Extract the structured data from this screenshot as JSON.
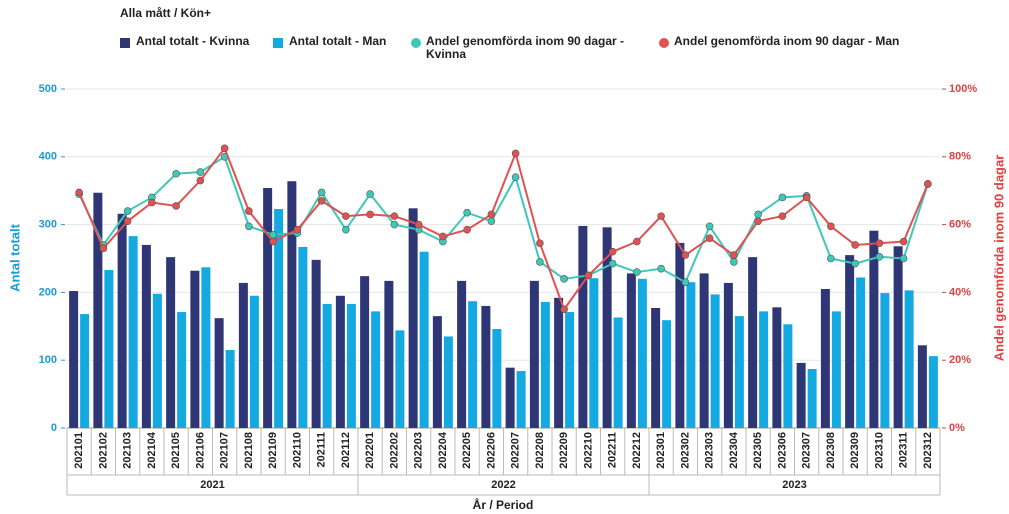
{
  "chart_data": {
    "type": "bar_line",
    "legend_title": "Alla mått / Kön+",
    "x_label": "År / Period",
    "y_label": "Antal totalt",
    "y2_label": "Andel genomförda inom 90 dagar",
    "categories": [
      "202101",
      "202102",
      "202103",
      "202104",
      "202105",
      "202106",
      "202107",
      "202108",
      "202109",
      "202110",
      "202111",
      "202112",
      "202201",
      "202202",
      "202203",
      "202204",
      "202205",
      "202206",
      "202207",
      "202208",
      "202209",
      "202210",
      "202211",
      "202212",
      "202301",
      "202302",
      "202303",
      "202304",
      "202305",
      "202306",
      "202307",
      "202308",
      "202309",
      "202310",
      "202311",
      "202312"
    ],
    "year_groups": [
      "2021",
      "2022",
      "2023"
    ],
    "series": [
      {
        "name": "Antal totalt - Kvinna",
        "type": "bar",
        "color": "#2e3675",
        "values": [
          202,
          347,
          316,
          270,
          252,
          232,
          162,
          214,
          354,
          364,
          248,
          195,
          224,
          217,
          324,
          165,
          217,
          180,
          89,
          217,
          192,
          298,
          296,
          228,
          177,
          273,
          228,
          214,
          252,
          178,
          96,
          205,
          255,
          291,
          268,
          122
        ]
      },
      {
        "name": "Antal totalt - Man",
        "type": "bar",
        "color": "#14a9e0",
        "values": [
          168,
          233,
          283,
          198,
          171,
          237,
          115,
          195,
          323,
          267,
          183,
          183,
          172,
          144,
          260,
          135,
          187,
          146,
          84,
          186,
          171,
          221,
          163,
          220,
          159,
          215,
          197,
          165,
          172,
          153,
          87,
          172,
          222,
          199,
          203,
          106
        ]
      },
      {
        "name": "Andel genomförda inom 90 dagar - Kvinna",
        "type": "line",
        "axis": "y2",
        "color": "#3ec8b8",
        "values": [
          69,
          54,
          64,
          68,
          75,
          75.5,
          80,
          59.5,
          57,
          57.5,
          69.5,
          58.5,
          69,
          60,
          58.5,
          55,
          63.5,
          61,
          74,
          49,
          44,
          45,
          48.5,
          46,
          47,
          43,
          59.5,
          49,
          63,
          68,
          68.5,
          50,
          48.5,
          50.5,
          50,
          72
        ]
      },
      {
        "name": "Andel genomförda inom 90 dagar - Man",
        "type": "line",
        "axis": "y2",
        "color": "#e05252",
        "values": [
          69.5,
          53,
          61,
          66.5,
          65.5,
          73,
          82.5,
          64,
          55,
          58.5,
          67,
          62.5,
          63,
          62.5,
          60,
          56.5,
          58.5,
          63,
          81,
          54.5,
          35,
          45,
          52,
          55,
          62.5,
          51,
          56,
          51,
          61,
          62.5,
          68,
          59.5,
          54,
          54.5,
          55,
          72
        ]
      }
    ],
    "ylim": [
      0,
      500
    ],
    "yticks": [
      0,
      100,
      200,
      300,
      400,
      500
    ],
    "y2lim": [
      0,
      100
    ],
    "y2ticks": [
      {
        "value": 0,
        "label": "0%"
      },
      {
        "value": 20,
        "label": "20%"
      },
      {
        "value": 40,
        "label": "40%"
      },
      {
        "value": 60,
        "label": "60%"
      },
      {
        "value": 80,
        "label": "80%"
      },
      {
        "value": 100,
        "label": "100%"
      }
    ],
    "y_color": "#1a9bd7",
    "y2_color": "#e04040",
    "grid": true
  }
}
